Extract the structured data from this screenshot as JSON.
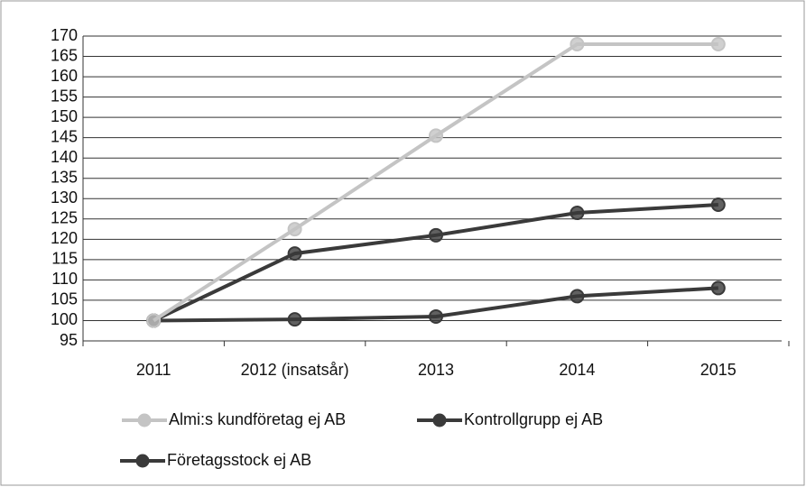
{
  "chart_data": {
    "type": "line",
    "categories": [
      "2011",
      "2012 (insatsår)",
      "2013",
      "2014",
      "2015"
    ],
    "series": [
      {
        "name": "Almi:s kundföretag ej AB",
        "color": "#c4c4c4",
        "values": [
          100,
          122.5,
          145.5,
          168,
          168
        ]
      },
      {
        "name": "Kontrollgrupp ej AB",
        "color": "#3a3a3a",
        "values": [
          100,
          116.5,
          121,
          126.5,
          128.5
        ]
      },
      {
        "name": "Företagsstock ej AB",
        "color": "#3a3a3a",
        "values": [
          100,
          100.3,
          101,
          106,
          108
        ]
      }
    ],
    "ylim": [
      95,
      170
    ],
    "yticks": [
      95,
      100,
      105,
      110,
      115,
      120,
      125,
      130,
      135,
      140,
      145,
      150,
      155,
      160,
      165,
      170
    ],
    "grid": true
  }
}
